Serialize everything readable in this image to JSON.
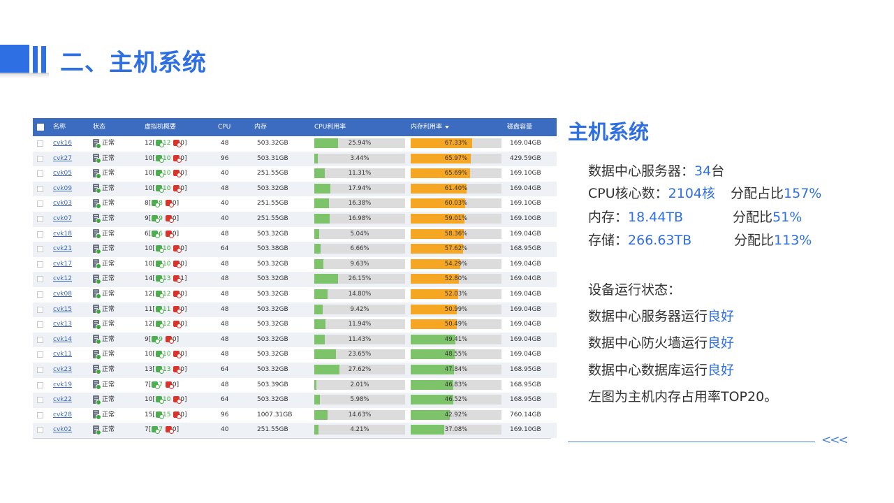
{
  "title": "二、主机系统",
  "columns": {
    "name": "名称",
    "status": "状态",
    "vm": "虚拟机概要",
    "cpu": "CPU",
    "mem": "内存",
    "cpu_usage": "CPU利用率",
    "mem_usage": "内存利用率",
    "disk": "磁盘容量"
  },
  "colors": {
    "accent": "#2f6fe4",
    "header_bg": "#3b6cc0",
    "cpu_bar": "#7dc36a",
    "mem_bar_high": "#f5a623",
    "mem_bar_low": "#7dc36a"
  },
  "rows": [
    {
      "name": "cvk16",
      "status": "正常",
      "vm_total": "12",
      "vm_run": "12",
      "vm_stop": "0",
      "cpu": "48",
      "mem": "503.32GB",
      "cpu_pct_label": "25.94%",
      "cpu_pct": 25.94,
      "mem_pct_label": "67.33%",
      "mem_pct": 67.33,
      "disk": "169.04GB"
    },
    {
      "name": "cvk27",
      "status": "正常",
      "vm_total": "10",
      "vm_run": "10",
      "vm_stop": "0",
      "cpu": "96",
      "mem": "503.31GB",
      "cpu_pct_label": "3.44%",
      "cpu_pct": 3.44,
      "mem_pct_label": "65.97%",
      "mem_pct": 65.97,
      "disk": "429.59GB"
    },
    {
      "name": "cvk05",
      "status": "正常",
      "vm_total": "10",
      "vm_run": "10",
      "vm_stop": "0",
      "cpu": "40",
      "mem": "251.55GB",
      "cpu_pct_label": "11.31%",
      "cpu_pct": 11.31,
      "mem_pct_label": "65.69%",
      "mem_pct": 65.69,
      "disk": "169.10GB"
    },
    {
      "name": "cvk09",
      "status": "正常",
      "vm_total": "10",
      "vm_run": "10",
      "vm_stop": "0",
      "cpu": "48",
      "mem": "503.32GB",
      "cpu_pct_label": "17.94%",
      "cpu_pct": 17.94,
      "mem_pct_label": "61.40%",
      "mem_pct": 61.4,
      "disk": "169.04GB"
    },
    {
      "name": "cvk03",
      "status": "正常",
      "vm_total": "8",
      "vm_run": "8",
      "vm_stop": "0",
      "cpu": "40",
      "mem": "251.55GB",
      "cpu_pct_label": "16.38%",
      "cpu_pct": 16.38,
      "mem_pct_label": "60.03%",
      "mem_pct": 60.03,
      "disk": "169.10GB"
    },
    {
      "name": "cvk07",
      "status": "正常",
      "vm_total": "9",
      "vm_run": "9",
      "vm_stop": "0",
      "cpu": "40",
      "mem": "251.55GB",
      "cpu_pct_label": "16.98%",
      "cpu_pct": 16.98,
      "mem_pct_label": "59.01%",
      "mem_pct": 59.01,
      "disk": "169.10GB"
    },
    {
      "name": "cvk18",
      "status": "正常",
      "vm_total": "6",
      "vm_run": "6",
      "vm_stop": "0",
      "cpu": "48",
      "mem": "503.32GB",
      "cpu_pct_label": "5.04%",
      "cpu_pct": 5.04,
      "mem_pct_label": "58.36%",
      "mem_pct": 58.36,
      "disk": "169.04GB"
    },
    {
      "name": "cvk21",
      "status": "正常",
      "vm_total": "10",
      "vm_run": "10",
      "vm_stop": "0",
      "cpu": "64",
      "mem": "503.38GB",
      "cpu_pct_label": "6.66%",
      "cpu_pct": 6.66,
      "mem_pct_label": "57.62%",
      "mem_pct": 57.62,
      "disk": "168.95GB"
    },
    {
      "name": "cvk17",
      "status": "正常",
      "vm_total": "10",
      "vm_run": "10",
      "vm_stop": "0",
      "cpu": "48",
      "mem": "503.32GB",
      "cpu_pct_label": "9.63%",
      "cpu_pct": 9.63,
      "mem_pct_label": "54.29%",
      "mem_pct": 54.29,
      "disk": "169.04GB"
    },
    {
      "name": "cvk12",
      "status": "正常",
      "vm_total": "14",
      "vm_run": "13",
      "vm_stop": "1",
      "cpu": "48",
      "mem": "503.32GB",
      "cpu_pct_label": "26.15%",
      "cpu_pct": 26.15,
      "mem_pct_label": "52.80%",
      "mem_pct": 52.8,
      "disk": "169.04GB"
    },
    {
      "name": "cvk08",
      "status": "正常",
      "vm_total": "12",
      "vm_run": "12",
      "vm_stop": "0",
      "cpu": "48",
      "mem": "503.32GB",
      "cpu_pct_label": "14.80%",
      "cpu_pct": 14.8,
      "mem_pct_label": "52.03%",
      "mem_pct": 52.03,
      "disk": "169.04GB"
    },
    {
      "name": "cvk15",
      "status": "正常",
      "vm_total": "11",
      "vm_run": "11",
      "vm_stop": "0",
      "cpu": "48",
      "mem": "503.32GB",
      "cpu_pct_label": "9.42%",
      "cpu_pct": 9.42,
      "mem_pct_label": "50.99%",
      "mem_pct": 50.99,
      "disk": "169.04GB"
    },
    {
      "name": "cvk13",
      "status": "正常",
      "vm_total": "12",
      "vm_run": "12",
      "vm_stop": "0",
      "cpu": "48",
      "mem": "503.32GB",
      "cpu_pct_label": "11.94%",
      "cpu_pct": 11.94,
      "mem_pct_label": "50.49%",
      "mem_pct": 50.49,
      "disk": "169.04GB"
    },
    {
      "name": "cvk14",
      "status": "正常",
      "vm_total": "9",
      "vm_run": "9",
      "vm_stop": "0",
      "cpu": "48",
      "mem": "503.32GB",
      "cpu_pct_label": "11.43%",
      "cpu_pct": 11.43,
      "mem_pct_label": "49.41%",
      "mem_pct": 49.41,
      "disk": "169.04GB"
    },
    {
      "name": "cvk11",
      "status": "正常",
      "vm_total": "10",
      "vm_run": "10",
      "vm_stop": "0",
      "cpu": "48",
      "mem": "503.32GB",
      "cpu_pct_label": "23.65%",
      "cpu_pct": 23.65,
      "mem_pct_label": "48.55%",
      "mem_pct": 48.55,
      "disk": "169.04GB"
    },
    {
      "name": "cvk23",
      "status": "正常",
      "vm_total": "13",
      "vm_run": "13",
      "vm_stop": "0",
      "cpu": "64",
      "mem": "503.32GB",
      "cpu_pct_label": "27.62%",
      "cpu_pct": 27.62,
      "mem_pct_label": "47.84%",
      "mem_pct": 47.84,
      "disk": "168.95GB"
    },
    {
      "name": "cvk19",
      "status": "正常",
      "vm_total": "7",
      "vm_run": "7",
      "vm_stop": "0",
      "cpu": "48",
      "mem": "503.39GB",
      "cpu_pct_label": "2.01%",
      "cpu_pct": 2.01,
      "mem_pct_label": "46.83%",
      "mem_pct": 46.83,
      "disk": "168.95GB"
    },
    {
      "name": "cvk22",
      "status": "正常",
      "vm_total": "10",
      "vm_run": "10",
      "vm_stop": "0",
      "cpu": "64",
      "mem": "503.32GB",
      "cpu_pct_label": "5.98%",
      "cpu_pct": 5.98,
      "mem_pct_label": "46.52%",
      "mem_pct": 46.52,
      "disk": "168.95GB"
    },
    {
      "name": "cvk28",
      "status": "正常",
      "vm_total": "15",
      "vm_run": "15",
      "vm_stop": "0",
      "cpu": "96",
      "mem": "1007.31GB",
      "cpu_pct_label": "14.63%",
      "cpu_pct": 14.63,
      "mem_pct_label": "42.92%",
      "mem_pct": 42.92,
      "disk": "760.14GB"
    },
    {
      "name": "cvk02",
      "status": "正常",
      "vm_total": "7",
      "vm_run": "7",
      "vm_stop": "0",
      "cpu": "40",
      "mem": "251.55GB",
      "cpu_pct_label": "4.21%",
      "cpu_pct": 4.21,
      "mem_pct_label": "37.08%",
      "mem_pct": 37.08,
      "disk": "169.10GB"
    }
  ],
  "side": {
    "title": "主机系统",
    "servers_label": "数据中心服务器：",
    "servers_value": "34",
    "servers_unit": "台",
    "cpu_label": "CPU核心数：",
    "cpu_value": "2104核",
    "cpu_ratio_label": "分配占比",
    "cpu_ratio_value": "157%",
    "mem_label": "内存：",
    "mem_value": "18.44TB",
    "mem_ratio_label": "分配比",
    "mem_ratio_value": "51%",
    "storage_label": "存储：",
    "storage_value": "266.63TB",
    "storage_ratio_label": "分配比",
    "storage_ratio_value": "113%",
    "status_heading": "设备运行状态：",
    "server_status_label": "数据中心服务器运行",
    "server_status_value": "良好",
    "firewall_status_label": "数据中心防火墙运行",
    "firewall_status_value": "良好",
    "db_status_label": "数据中心数据库运行",
    "db_status_value": "良好",
    "note": "左图为主机内存占用率TOP20。",
    "arrows": "<<<"
  }
}
